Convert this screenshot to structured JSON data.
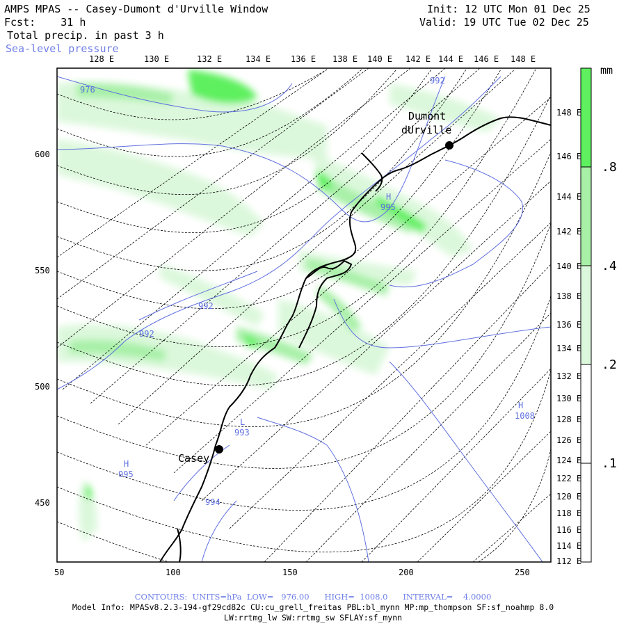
{
  "header": {
    "title": "AMPS MPAS -- Casey-Dumont d'Urville Window",
    "forecast": "Fcst:    31 h",
    "field": "Total precip. in past 3 h",
    "overlay": "Sea-level pressure",
    "init": "Init: 12 UTC Mon 01 Dec 25",
    "valid": "Valid: 19 UTC Tue 02 Dec 25"
  },
  "axes": {
    "bottom_ticks": [
      "50",
      "100",
      "150",
      "200",
      "250"
    ],
    "left_ticks": [
      "600",
      "550",
      "500",
      "450"
    ],
    "top_lon_labels": [
      "128 E",
      "130 E",
      "132 E",
      "134 E",
      "136 E",
      "138 E",
      "140 E",
      "142 E",
      "144 E",
      "146 E",
      "148 E"
    ],
    "right_lon_labels": [
      "148 E",
      "146 E",
      "144 E",
      "142 E",
      "140 E",
      "138 E",
      "136 E",
      "134 E",
      "132 E",
      "130 E",
      "128 E",
      "126 E",
      "124 E",
      "122 E",
      "120 E",
      "118 E",
      "116 E",
      "114 E",
      "112 E"
    ]
  },
  "stations": [
    {
      "name": "Casey"
    },
    {
      "name": "Dumont",
      "name2": "dUrville"
    }
  ],
  "pressure_labels": [
    {
      "text": "976"
    },
    {
      "text": "992"
    },
    {
      "text": "992"
    },
    {
      "text": "992"
    },
    {
      "text": "994"
    },
    {
      "text": "993"
    },
    {
      "text": "995"
    },
    {
      "text": "995"
    },
    {
      "text": "1008"
    }
  ],
  "centers": [
    {
      "text": "H"
    },
    {
      "text": "L"
    },
    {
      "text": "H"
    },
    {
      "text": "H"
    }
  ],
  "legend": {
    "unit": "mm",
    "levels": [
      ".8",
      ".4",
      ".2",
      ".1"
    ],
    "colors": [
      "#5ef05e",
      "#a8f0a8",
      "#dcf8dc",
      "#ffffff"
    ]
  },
  "footer": {
    "contours": "CONTOURS:  UNITS=hPa  LOW=   976.00      HIGH=  1008.0      INTERVAL=    4.0000",
    "model": "Model Info: MPASv8.2.3-194-gf29cd82c CU:cu_grell_freitas PBL:bl_mynn MP:mp_thompson SF:sf_noahmp 8.0",
    "physics": "LW:rrtmg_lw SW:rrtmg_sw SFLAY:sf_mynn"
  }
}
